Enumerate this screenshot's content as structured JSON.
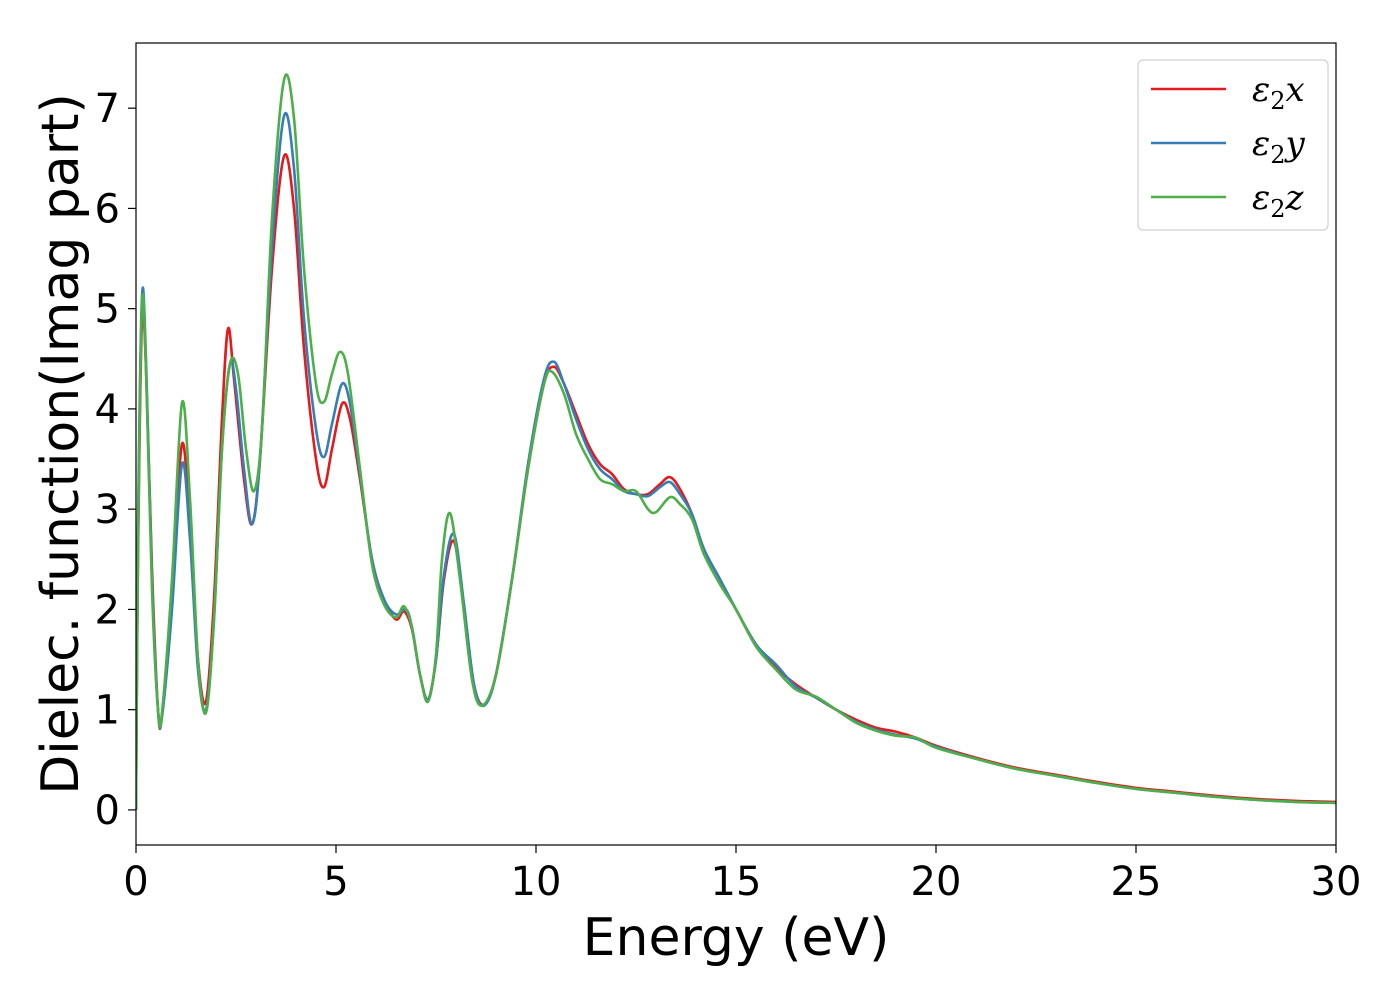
{
  "chart_data": {
    "type": "line",
    "title": "",
    "xlabel": "Energy (eV)",
    "ylabel": "Dielec. function(Imag part)",
    "xlim": [
      0,
      30
    ],
    "ylim": [
      -0.35,
      7.65
    ],
    "xticks": [
      0,
      5,
      10,
      15,
      20,
      25,
      30
    ],
    "yticks": [
      0,
      1,
      2,
      3,
      4,
      5,
      6,
      7
    ],
    "grid": false,
    "legend": {
      "placement": "top-right"
    },
    "series": [
      {
        "name": "ε₂x",
        "label_base": "ε",
        "label_sub": "2",
        "label_tail": "x",
        "color": "#e41a1c",
        "points": [
          [
            0,
            0
          ],
          [
            0.05,
            2.5
          ],
          [
            0.15,
            4.9
          ],
          [
            0.25,
            4.4
          ],
          [
            0.4,
            2.4
          ],
          [
            0.55,
            1.0
          ],
          [
            0.65,
            0.95
          ],
          [
            0.9,
            2.2
          ],
          [
            1.15,
            3.65
          ],
          [
            1.35,
            2.8
          ],
          [
            1.55,
            1.5
          ],
          [
            1.75,
            1.08
          ],
          [
            1.95,
            2.1
          ],
          [
            2.15,
            3.9
          ],
          [
            2.3,
            4.8
          ],
          [
            2.45,
            4.3
          ],
          [
            2.7,
            3.3
          ],
          [
            2.9,
            2.85
          ],
          [
            3.1,
            3.5
          ],
          [
            3.4,
            5.4
          ],
          [
            3.7,
            6.52
          ],
          [
            3.95,
            6.0
          ],
          [
            4.2,
            4.6
          ],
          [
            4.5,
            3.5
          ],
          [
            4.7,
            3.22
          ],
          [
            4.9,
            3.6
          ],
          [
            5.15,
            4.05
          ],
          [
            5.35,
            3.9
          ],
          [
            5.6,
            3.3
          ],
          [
            5.9,
            2.5
          ],
          [
            6.2,
            2.1
          ],
          [
            6.5,
            1.9
          ],
          [
            6.7,
            1.98
          ],
          [
            6.9,
            1.8
          ],
          [
            7.1,
            1.35
          ],
          [
            7.3,
            1.1
          ],
          [
            7.5,
            1.5
          ],
          [
            7.7,
            2.3
          ],
          [
            7.95,
            2.68
          ],
          [
            8.2,
            2.0
          ],
          [
            8.45,
            1.25
          ],
          [
            8.7,
            1.05
          ],
          [
            9.0,
            1.35
          ],
          [
            9.4,
            2.3
          ],
          [
            9.8,
            3.4
          ],
          [
            10.2,
            4.25
          ],
          [
            10.45,
            4.42
          ],
          [
            10.7,
            4.25
          ],
          [
            11.0,
            3.95
          ],
          [
            11.3,
            3.65
          ],
          [
            11.6,
            3.45
          ],
          [
            11.9,
            3.35
          ],
          [
            12.2,
            3.2
          ],
          [
            12.5,
            3.15
          ],
          [
            12.8,
            3.15
          ],
          [
            13.1,
            3.25
          ],
          [
            13.35,
            3.32
          ],
          [
            13.6,
            3.2
          ],
          [
            13.9,
            2.95
          ],
          [
            14.2,
            2.6
          ],
          [
            14.6,
            2.3
          ],
          [
            15.0,
            2.0
          ],
          [
            15.5,
            1.65
          ],
          [
            16.0,
            1.42
          ],
          [
            16.5,
            1.25
          ],
          [
            17.0,
            1.12
          ],
          [
            17.5,
            1.0
          ],
          [
            18.0,
            0.9
          ],
          [
            18.5,
            0.82
          ],
          [
            19.0,
            0.78
          ],
          [
            19.5,
            0.72
          ],
          [
            20.0,
            0.64
          ],
          [
            21.0,
            0.52
          ],
          [
            22.0,
            0.42
          ],
          [
            23.0,
            0.35
          ],
          [
            24.0,
            0.28
          ],
          [
            25.0,
            0.22
          ],
          [
            26.0,
            0.18
          ],
          [
            27.0,
            0.14
          ],
          [
            28.0,
            0.11
          ],
          [
            29.0,
            0.09
          ],
          [
            30.0,
            0.08
          ]
        ]
      },
      {
        "name": "ε₂y",
        "label_base": "ε",
        "label_sub": "2",
        "label_tail": "y",
        "color": "#377eb8",
        "points": [
          [
            0,
            0
          ],
          [
            0.05,
            2.8
          ],
          [
            0.15,
            5.12
          ],
          [
            0.25,
            4.5
          ],
          [
            0.4,
            2.3
          ],
          [
            0.55,
            1.0
          ],
          [
            0.65,
            0.93
          ],
          [
            0.9,
            2.0
          ],
          [
            1.15,
            3.45
          ],
          [
            1.35,
            2.7
          ],
          [
            1.55,
            1.4
          ],
          [
            1.75,
            1.0
          ],
          [
            1.95,
            1.9
          ],
          [
            2.15,
            3.6
          ],
          [
            2.35,
            4.45
          ],
          [
            2.5,
            4.2
          ],
          [
            2.7,
            3.4
          ],
          [
            2.9,
            2.85
          ],
          [
            3.1,
            3.5
          ],
          [
            3.4,
            5.6
          ],
          [
            3.7,
            6.92
          ],
          [
            3.95,
            6.4
          ],
          [
            4.2,
            4.9
          ],
          [
            4.5,
            3.8
          ],
          [
            4.7,
            3.52
          ],
          [
            4.9,
            3.85
          ],
          [
            5.15,
            4.25
          ],
          [
            5.35,
            4.05
          ],
          [
            5.6,
            3.35
          ],
          [
            5.9,
            2.5
          ],
          [
            6.2,
            2.1
          ],
          [
            6.5,
            1.95
          ],
          [
            6.75,
            2.0
          ],
          [
            6.9,
            1.82
          ],
          [
            7.1,
            1.35
          ],
          [
            7.3,
            1.1
          ],
          [
            7.5,
            1.5
          ],
          [
            7.7,
            2.35
          ],
          [
            7.95,
            2.75
          ],
          [
            8.2,
            2.05
          ],
          [
            8.45,
            1.25
          ],
          [
            8.7,
            1.04
          ],
          [
            9.0,
            1.35
          ],
          [
            9.4,
            2.3
          ],
          [
            9.8,
            3.45
          ],
          [
            10.2,
            4.3
          ],
          [
            10.45,
            4.47
          ],
          [
            10.7,
            4.25
          ],
          [
            11.0,
            3.9
          ],
          [
            11.3,
            3.6
          ],
          [
            11.6,
            3.4
          ],
          [
            11.9,
            3.3
          ],
          [
            12.2,
            3.18
          ],
          [
            12.5,
            3.15
          ],
          [
            12.8,
            3.13
          ],
          [
            13.1,
            3.22
          ],
          [
            13.35,
            3.27
          ],
          [
            13.6,
            3.15
          ],
          [
            13.9,
            2.95
          ],
          [
            14.2,
            2.6
          ],
          [
            14.6,
            2.3
          ],
          [
            15.0,
            2.0
          ],
          [
            15.5,
            1.65
          ],
          [
            16.0,
            1.45
          ],
          [
            16.5,
            1.23
          ],
          [
            17.0,
            1.12
          ],
          [
            17.5,
            1.0
          ],
          [
            18.0,
            0.88
          ],
          [
            18.5,
            0.8
          ],
          [
            19.0,
            0.75
          ],
          [
            19.5,
            0.71
          ],
          [
            20.0,
            0.63
          ],
          [
            21.0,
            0.51
          ],
          [
            22.0,
            0.41
          ],
          [
            23.0,
            0.34
          ],
          [
            24.0,
            0.27
          ],
          [
            25.0,
            0.21
          ],
          [
            26.0,
            0.17
          ],
          [
            27.0,
            0.13
          ],
          [
            28.0,
            0.1
          ],
          [
            29.0,
            0.08
          ],
          [
            30.0,
            0.07
          ]
        ]
      },
      {
        "name": "ε₂z",
        "label_base": "ε",
        "label_sub": "2",
        "label_tail": "z",
        "color": "#4daf4a",
        "points": [
          [
            0,
            0
          ],
          [
            0.05,
            2.6
          ],
          [
            0.15,
            5.05
          ],
          [
            0.25,
            4.4
          ],
          [
            0.4,
            2.2
          ],
          [
            0.55,
            1.0
          ],
          [
            0.65,
            0.97
          ],
          [
            0.9,
            2.3
          ],
          [
            1.15,
            4.06
          ],
          [
            1.35,
            3.1
          ],
          [
            1.55,
            1.5
          ],
          [
            1.75,
            0.97
          ],
          [
            1.95,
            1.9
          ],
          [
            2.15,
            3.6
          ],
          [
            2.35,
            4.45
          ],
          [
            2.55,
            4.35
          ],
          [
            2.75,
            3.6
          ],
          [
            2.95,
            3.18
          ],
          [
            3.15,
            3.8
          ],
          [
            3.4,
            5.9
          ],
          [
            3.7,
            7.28
          ],
          [
            3.95,
            6.9
          ],
          [
            4.2,
            5.4
          ],
          [
            4.5,
            4.25
          ],
          [
            4.7,
            4.07
          ],
          [
            4.9,
            4.35
          ],
          [
            5.1,
            4.57
          ],
          [
            5.3,
            4.35
          ],
          [
            5.6,
            3.4
          ],
          [
            5.9,
            2.45
          ],
          [
            6.2,
            2.05
          ],
          [
            6.5,
            1.92
          ],
          [
            6.7,
            2.03
          ],
          [
            6.9,
            1.82
          ],
          [
            7.1,
            1.35
          ],
          [
            7.3,
            1.08
          ],
          [
            7.5,
            1.55
          ],
          [
            7.65,
            2.5
          ],
          [
            7.85,
            2.96
          ],
          [
            8.1,
            2.3
          ],
          [
            8.4,
            1.3
          ],
          [
            8.65,
            1.04
          ],
          [
            9.0,
            1.35
          ],
          [
            9.4,
            2.3
          ],
          [
            9.8,
            3.4
          ],
          [
            10.2,
            4.25
          ],
          [
            10.4,
            4.37
          ],
          [
            10.7,
            4.15
          ],
          [
            11.0,
            3.75
          ],
          [
            11.3,
            3.5
          ],
          [
            11.6,
            3.3
          ],
          [
            11.9,
            3.25
          ],
          [
            12.2,
            3.18
          ],
          [
            12.5,
            3.18
          ],
          [
            12.8,
            3.0
          ],
          [
            13.0,
            2.97
          ],
          [
            13.35,
            3.12
          ],
          [
            13.6,
            3.05
          ],
          [
            13.9,
            2.9
          ],
          [
            14.2,
            2.55
          ],
          [
            14.6,
            2.25
          ],
          [
            15.0,
            2.0
          ],
          [
            15.5,
            1.63
          ],
          [
            16.0,
            1.4
          ],
          [
            16.5,
            1.2
          ],
          [
            17.0,
            1.13
          ],
          [
            17.5,
            1.0
          ],
          [
            18.0,
            0.87
          ],
          [
            18.5,
            0.79
          ],
          [
            19.0,
            0.74
          ],
          [
            19.5,
            0.72
          ],
          [
            20.0,
            0.62
          ],
          [
            21.0,
            0.51
          ],
          [
            22.0,
            0.41
          ],
          [
            23.0,
            0.34
          ],
          [
            24.0,
            0.27
          ],
          [
            25.0,
            0.21
          ],
          [
            26.0,
            0.17
          ],
          [
            27.0,
            0.13
          ],
          [
            28.0,
            0.1
          ],
          [
            29.0,
            0.08
          ],
          [
            30.0,
            0.07
          ]
        ]
      }
    ]
  }
}
